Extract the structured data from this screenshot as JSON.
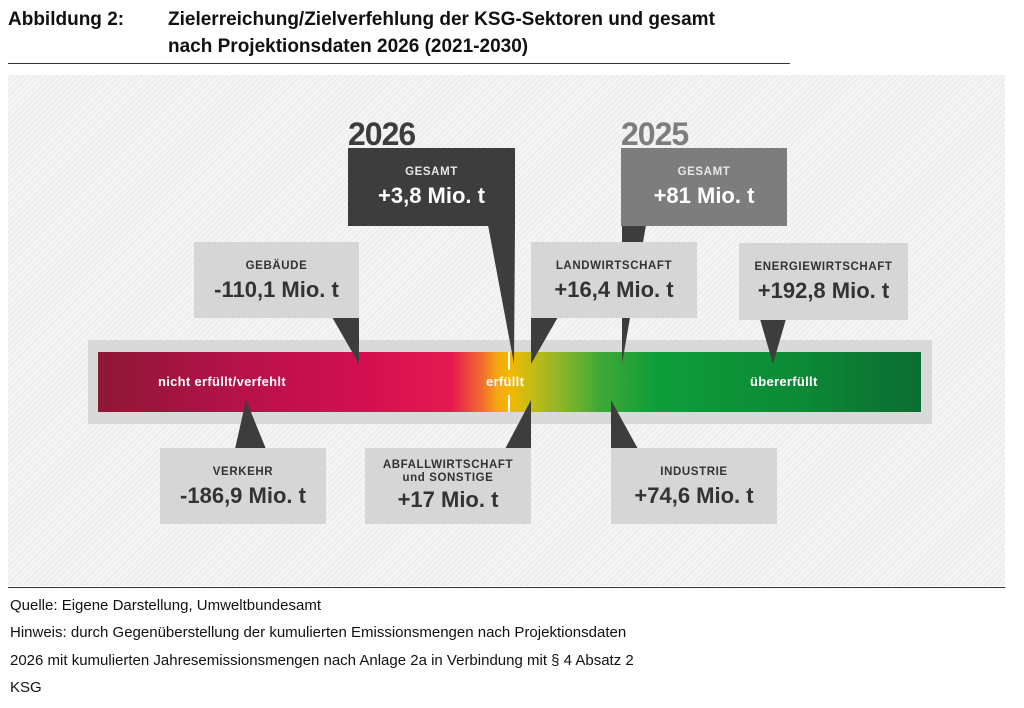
{
  "header": {
    "figure_label": "Abbildung 2:",
    "title_line1": "Zielerreichung/Zielverfehlung der KSG-Sektoren und gesamt",
    "title_line2": "nach Projektionsdaten 2026 (2021-2030)"
  },
  "diagram": {
    "scale": {
      "left_label": "nicht erfüllt/verfehlt",
      "center_label": "erfüllt",
      "right_label": "übererfüllt",
      "colors": {
        "not_met": "#8e1737",
        "met": "#f4b800",
        "exceeded": "#0b6d32"
      }
    },
    "totals": [
      {
        "year": "2026",
        "caption": "GESAMT",
        "value": "+3,8 Mio. t",
        "color": "#3d3d3d"
      },
      {
        "year": "2025",
        "caption": "GESAMT",
        "value": "+81 Mio. t",
        "color": "#7d7d7d"
      }
    ],
    "sectors": [
      {
        "caption": "GEBÄUDE",
        "value": "-110,1 Mio. t"
      },
      {
        "caption": "LANDWIRTSCHAFT",
        "value": "+16,4 Mio. t"
      },
      {
        "caption": "ENERGIEWIRTSCHAFT",
        "value": "+192,8 Mio. t"
      },
      {
        "caption": "VERKEHR",
        "value": "-186,9 Mio. t"
      },
      {
        "caption": "ABFALLWIRTSCHAFT",
        "caption2": "und SONSTIGE",
        "value": "+17 Mio. t"
      },
      {
        "caption": "INDUSTRIE",
        "value": "+74,6 Mio. t"
      }
    ]
  },
  "footer": {
    "source": "Quelle: Eigene Darstellung, Umweltbundesamt",
    "note_line1": "Hinweis: durch Gegenüberstellung der kumulierten Emissionsmengen nach Projektionsdaten",
    "note_line2": "2026 mit kumulierten Jahresemissionsmengen nach Anlage 2a in Verbindung mit § 4 Absatz 2",
    "note_line3": "KSG"
  }
}
